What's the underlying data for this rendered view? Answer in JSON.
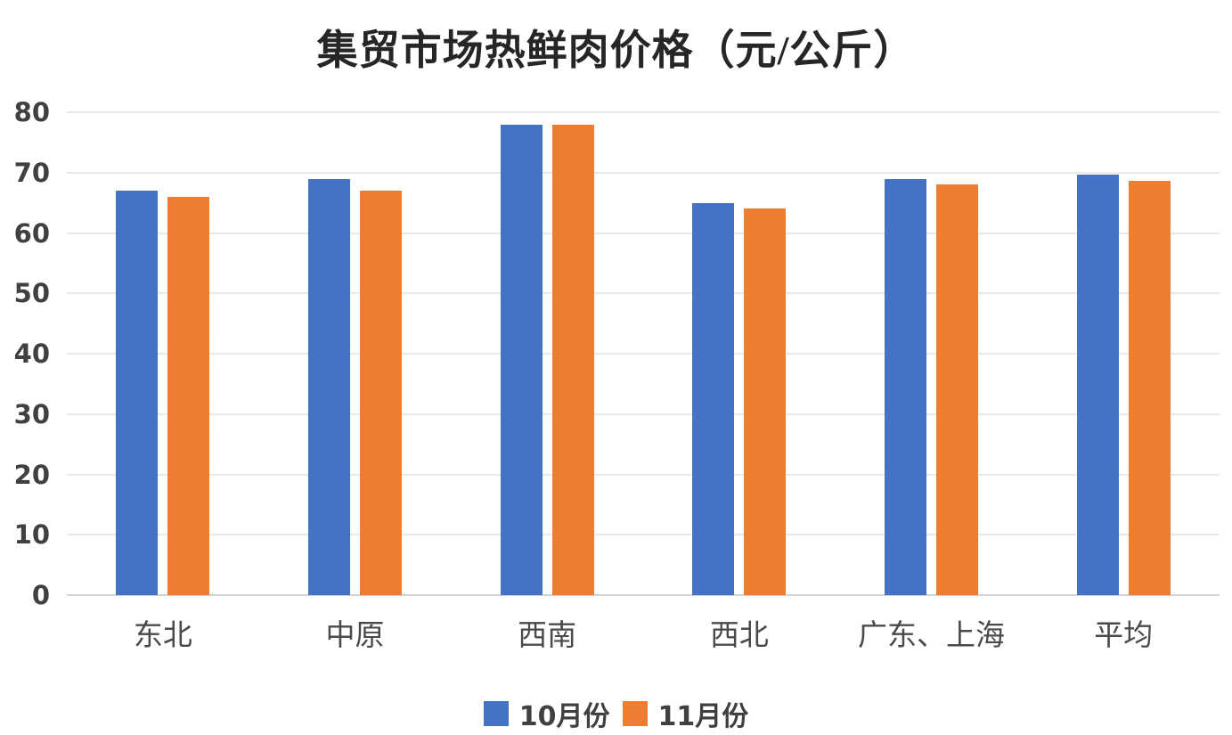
{
  "chart_data": {
    "type": "bar",
    "title": "集贸市场热鲜肉价格（元/公斤）",
    "categories": [
      "东北",
      "中原",
      "西南",
      "西北",
      "广东、上海",
      "平均"
    ],
    "series": [
      {
        "name": "10月份",
        "color": "#4472C4",
        "values": [
          67,
          69,
          78,
          65,
          69,
          69.6
        ]
      },
      {
        "name": "11月份",
        "color": "#ED7D31",
        "values": [
          66,
          67,
          78,
          64,
          68,
          68.6
        ]
      }
    ],
    "xlabel": "",
    "ylabel": "",
    "ylim": [
      0,
      80
    ],
    "yticks": [
      0,
      10,
      20,
      30,
      40,
      50,
      60,
      70,
      80
    ],
    "grid": true,
    "legend_position": "bottom",
    "colors": {
      "title": "#262626",
      "tick_label": "#404040",
      "category_label": "#4a4a4a",
      "gridline": "#e9e9e9",
      "axis_line": "#d2d2d2",
      "background": "#ffffff"
    }
  }
}
